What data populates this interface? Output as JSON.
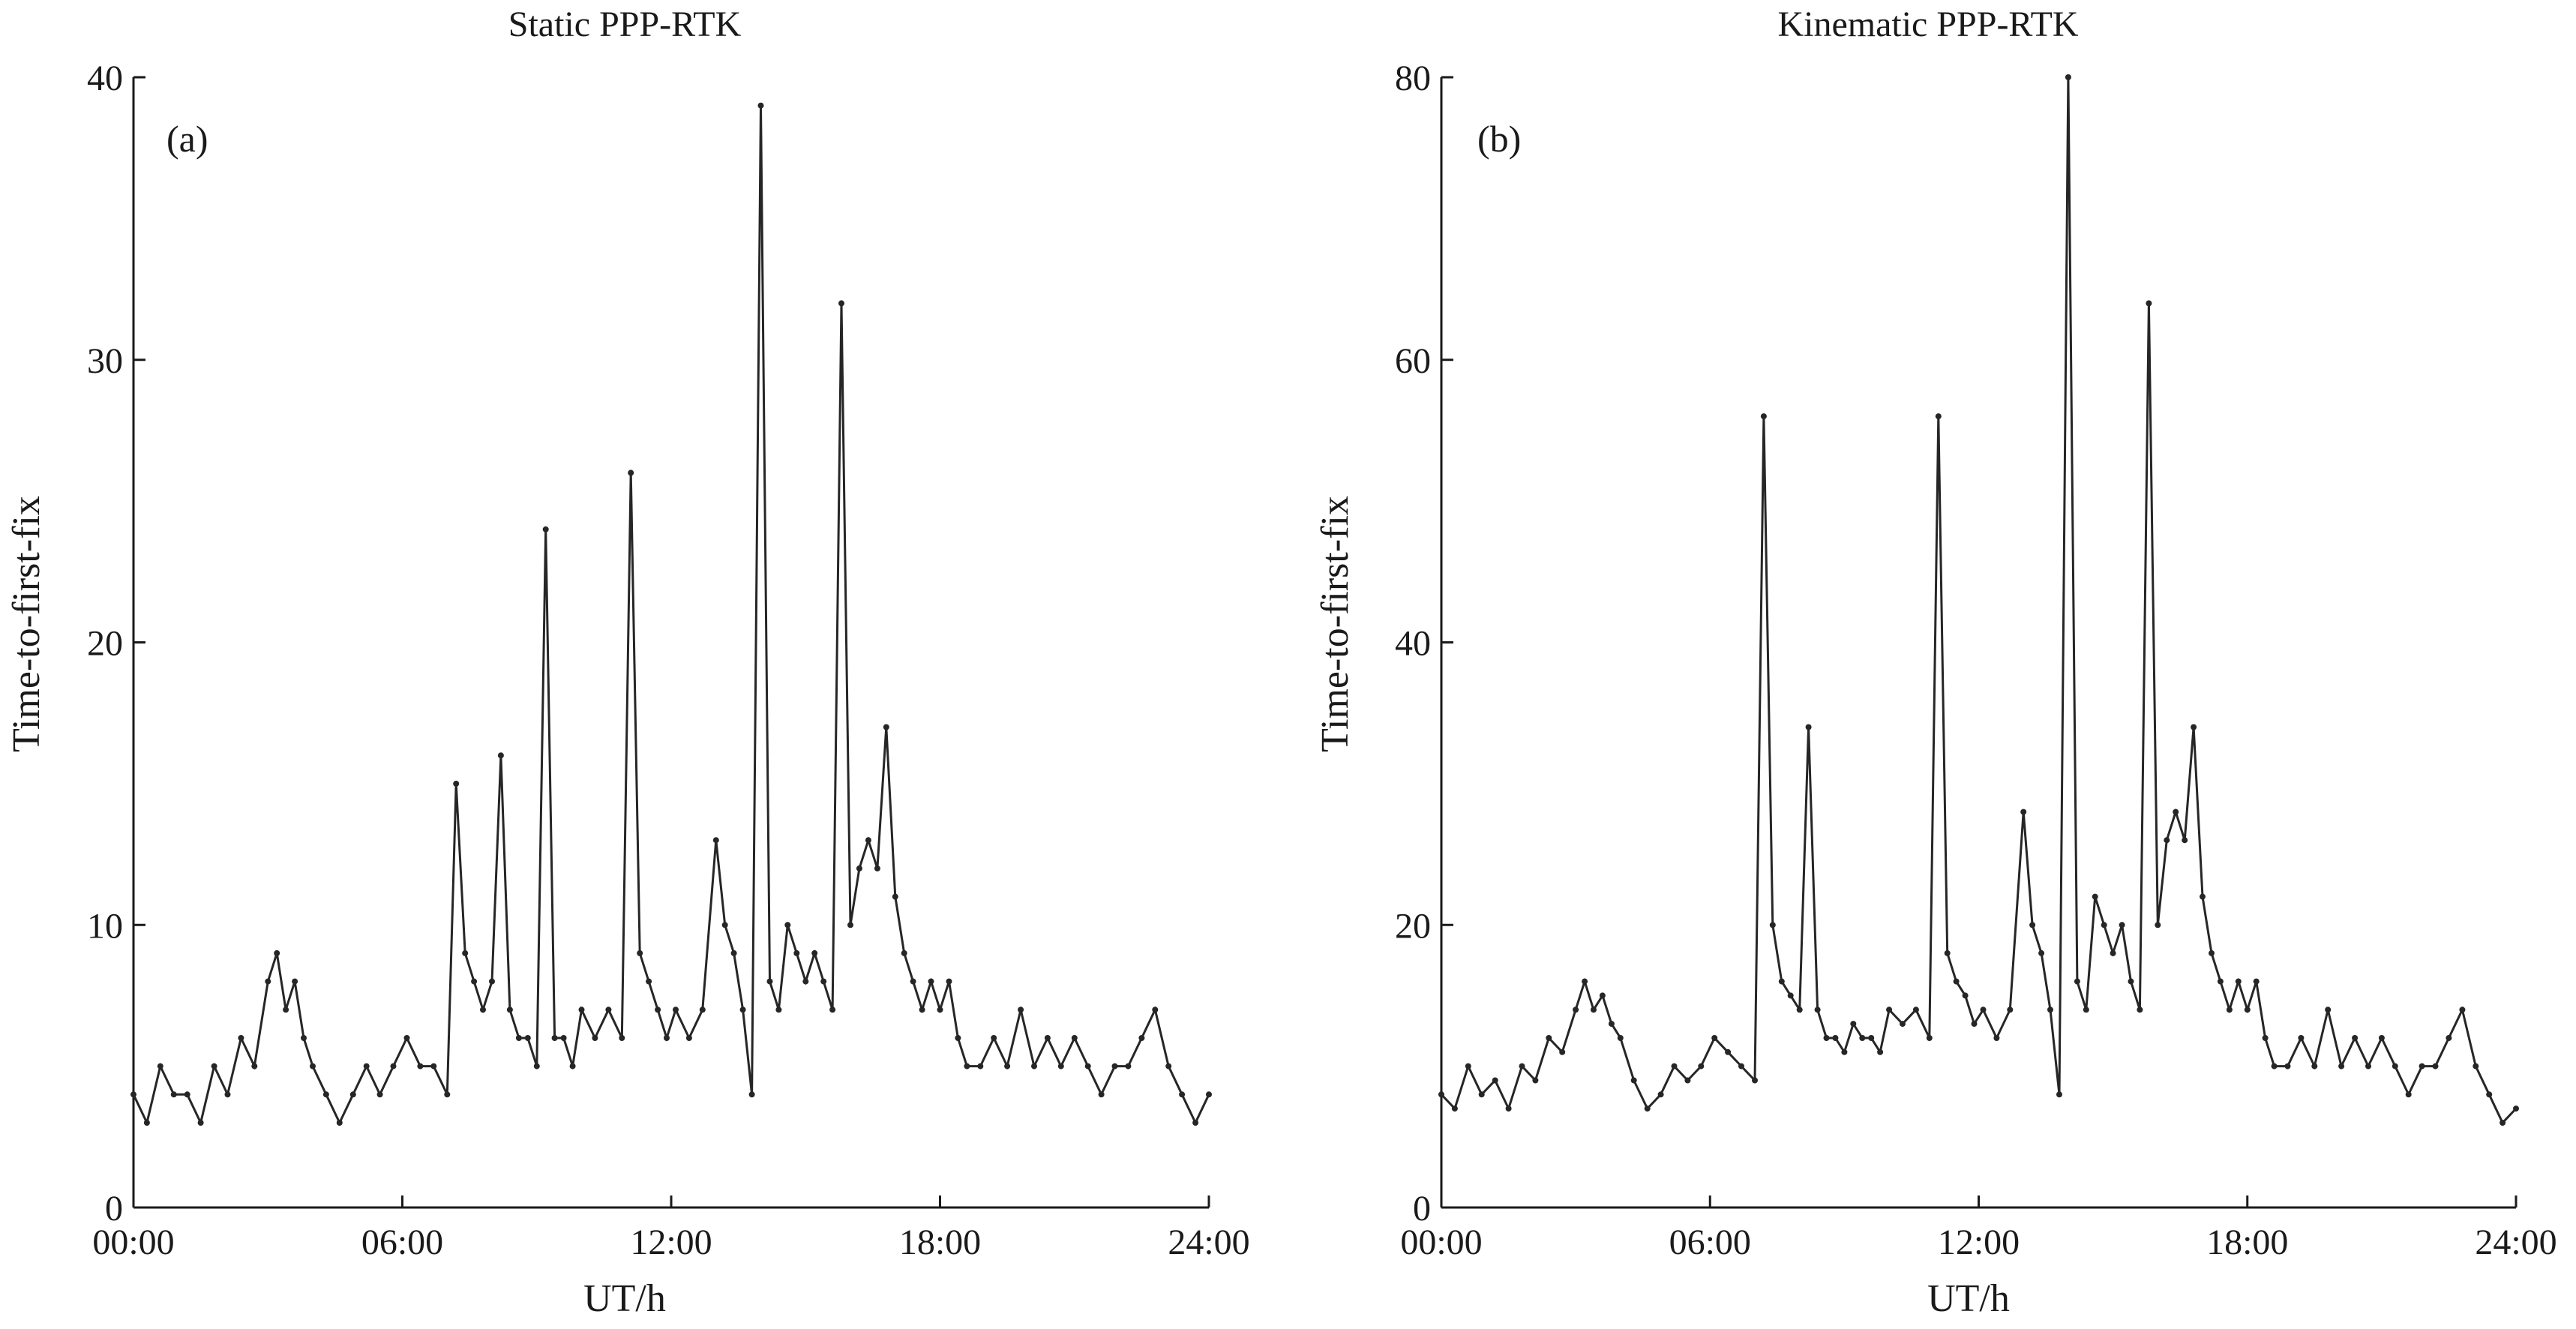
{
  "chart_data": [
    {
      "type": "line",
      "panel_label": "(a)",
      "title": "Static PPP-RTK",
      "xlabel": "UT/h",
      "ylabel": "Time-to-first-fix",
      "xlim": [
        0,
        24
      ],
      "ylim": [
        0,
        40
      ],
      "xticks": [
        0,
        6,
        12,
        18,
        24
      ],
      "xtick_labels": [
        "00:00",
        "06:00",
        "12:00",
        "18:00",
        "24:00"
      ],
      "yticks": [
        0,
        10,
        20,
        30,
        40
      ],
      "ytick_labels": [
        "0",
        "10",
        "20",
        "30",
        "40"
      ],
      "grid": false,
      "line_color": "#262626",
      "series": [
        {
          "name": "Static PPP-RTK",
          "x": [
            0.0,
            0.3,
            0.6,
            0.9,
            1.2,
            1.5,
            1.8,
            2.1,
            2.4,
            2.7,
            3.0,
            3.2,
            3.4,
            3.6,
            3.8,
            4.0,
            4.3,
            4.6,
            4.9,
            5.2,
            5.5,
            5.8,
            6.1,
            6.4,
            6.7,
            7.0,
            7.2,
            7.4,
            7.6,
            7.8,
            8.0,
            8.2,
            8.4,
            8.6,
            8.8,
            9.0,
            9.2,
            9.4,
            9.6,
            9.8,
            10.0,
            10.3,
            10.6,
            10.9,
            11.1,
            11.3,
            11.5,
            11.7,
            11.9,
            12.1,
            12.4,
            12.7,
            13.0,
            13.2,
            13.4,
            13.6,
            13.8,
            14.0,
            14.2,
            14.4,
            14.6,
            14.8,
            15.0,
            15.2,
            15.4,
            15.6,
            15.8,
            16.0,
            16.2,
            16.4,
            16.6,
            16.8,
            17.0,
            17.2,
            17.4,
            17.6,
            17.8,
            18.0,
            18.2,
            18.4,
            18.6,
            18.9,
            19.2,
            19.5,
            19.8,
            20.1,
            20.4,
            20.7,
            21.0,
            21.3,
            21.6,
            21.9,
            22.2,
            22.5,
            22.8,
            23.1,
            23.4,
            23.7,
            24.0
          ],
          "values": [
            4,
            3,
            5,
            4,
            4,
            3,
            5,
            4,
            6,
            5,
            8,
            9,
            7,
            8,
            6,
            5,
            4,
            3,
            4,
            5,
            4,
            5,
            6,
            5,
            5,
            4,
            15,
            9,
            8,
            7,
            8,
            16,
            7,
            6,
            6,
            5,
            24,
            6,
            6,
            5,
            7,
            6,
            7,
            6,
            26,
            9,
            8,
            7,
            6,
            7,
            6,
            7,
            13,
            10,
            9,
            7,
            4,
            39,
            8,
            7,
            10,
            9,
            8,
            9,
            8,
            7,
            32,
            10,
            12,
            13,
            12,
            17,
            11,
            9,
            8,
            7,
            8,
            7,
            8,
            6,
            5,
            5,
            6,
            5,
            7,
            5,
            6,
            5,
            6,
            5,
            4,
            5,
            5,
            6,
            7,
            5,
            4,
            3,
            4
          ]
        }
      ]
    },
    {
      "type": "line",
      "panel_label": "(b)",
      "title": "Kinematic PPP-RTK",
      "xlabel": "UT/h",
      "ylabel": "Time-to-first-fix",
      "xlim": [
        0,
        24
      ],
      "ylim": [
        0,
        80
      ],
      "xticks": [
        0,
        6,
        12,
        18,
        24
      ],
      "xtick_labels": [
        "00:00",
        "06:00",
        "12:00",
        "18:00",
        "24:00"
      ],
      "yticks": [
        0,
        20,
        40,
        60,
        80
      ],
      "ytick_labels": [
        "0",
        "20",
        "40",
        "60",
        "80"
      ],
      "grid": false,
      "line_color": "#262626",
      "series": [
        {
          "name": "Kinematic PPP-RTK",
          "x": [
            0.0,
            0.3,
            0.6,
            0.9,
            1.2,
            1.5,
            1.8,
            2.1,
            2.4,
            2.7,
            3.0,
            3.2,
            3.4,
            3.6,
            3.8,
            4.0,
            4.3,
            4.6,
            4.9,
            5.2,
            5.5,
            5.8,
            6.1,
            6.4,
            6.7,
            7.0,
            7.2,
            7.4,
            7.6,
            7.8,
            8.0,
            8.2,
            8.4,
            8.6,
            8.8,
            9.0,
            9.2,
            9.4,
            9.6,
            9.8,
            10.0,
            10.3,
            10.6,
            10.9,
            11.1,
            11.3,
            11.5,
            11.7,
            11.9,
            12.1,
            12.4,
            12.7,
            13.0,
            13.2,
            13.4,
            13.6,
            13.8,
            14.0,
            14.2,
            14.4,
            14.6,
            14.8,
            15.0,
            15.2,
            15.4,
            15.6,
            15.8,
            16.0,
            16.2,
            16.4,
            16.6,
            16.8,
            17.0,
            17.2,
            17.4,
            17.6,
            17.8,
            18.0,
            18.2,
            18.4,
            18.6,
            18.9,
            19.2,
            19.5,
            19.8,
            20.1,
            20.4,
            20.7,
            21.0,
            21.3,
            21.6,
            21.9,
            22.2,
            22.5,
            22.8,
            23.1,
            23.4,
            23.7,
            24.0
          ],
          "values": [
            8,
            7,
            10,
            8,
            9,
            7,
            10,
            9,
            12,
            11,
            14,
            16,
            14,
            15,
            13,
            12,
            9,
            7,
            8,
            10,
            9,
            10,
            12,
            11,
            10,
            9,
            56,
            20,
            16,
            15,
            14,
            34,
            14,
            12,
            12,
            11,
            13,
            12,
            12,
            11,
            14,
            13,
            14,
            12,
            56,
            18,
            16,
            15,
            13,
            14,
            12,
            14,
            28,
            20,
            18,
            14,
            8,
            80,
            16,
            14,
            22,
            20,
            18,
            20,
            16,
            14,
            64,
            20,
            26,
            28,
            26,
            34,
            22,
            18,
            16,
            14,
            16,
            14,
            16,
            12,
            10,
            10,
            12,
            10,
            14,
            10,
            12,
            10,
            12,
            10,
            8,
            10,
            10,
            12,
            14,
            10,
            8,
            6,
            7
          ]
        }
      ]
    }
  ]
}
